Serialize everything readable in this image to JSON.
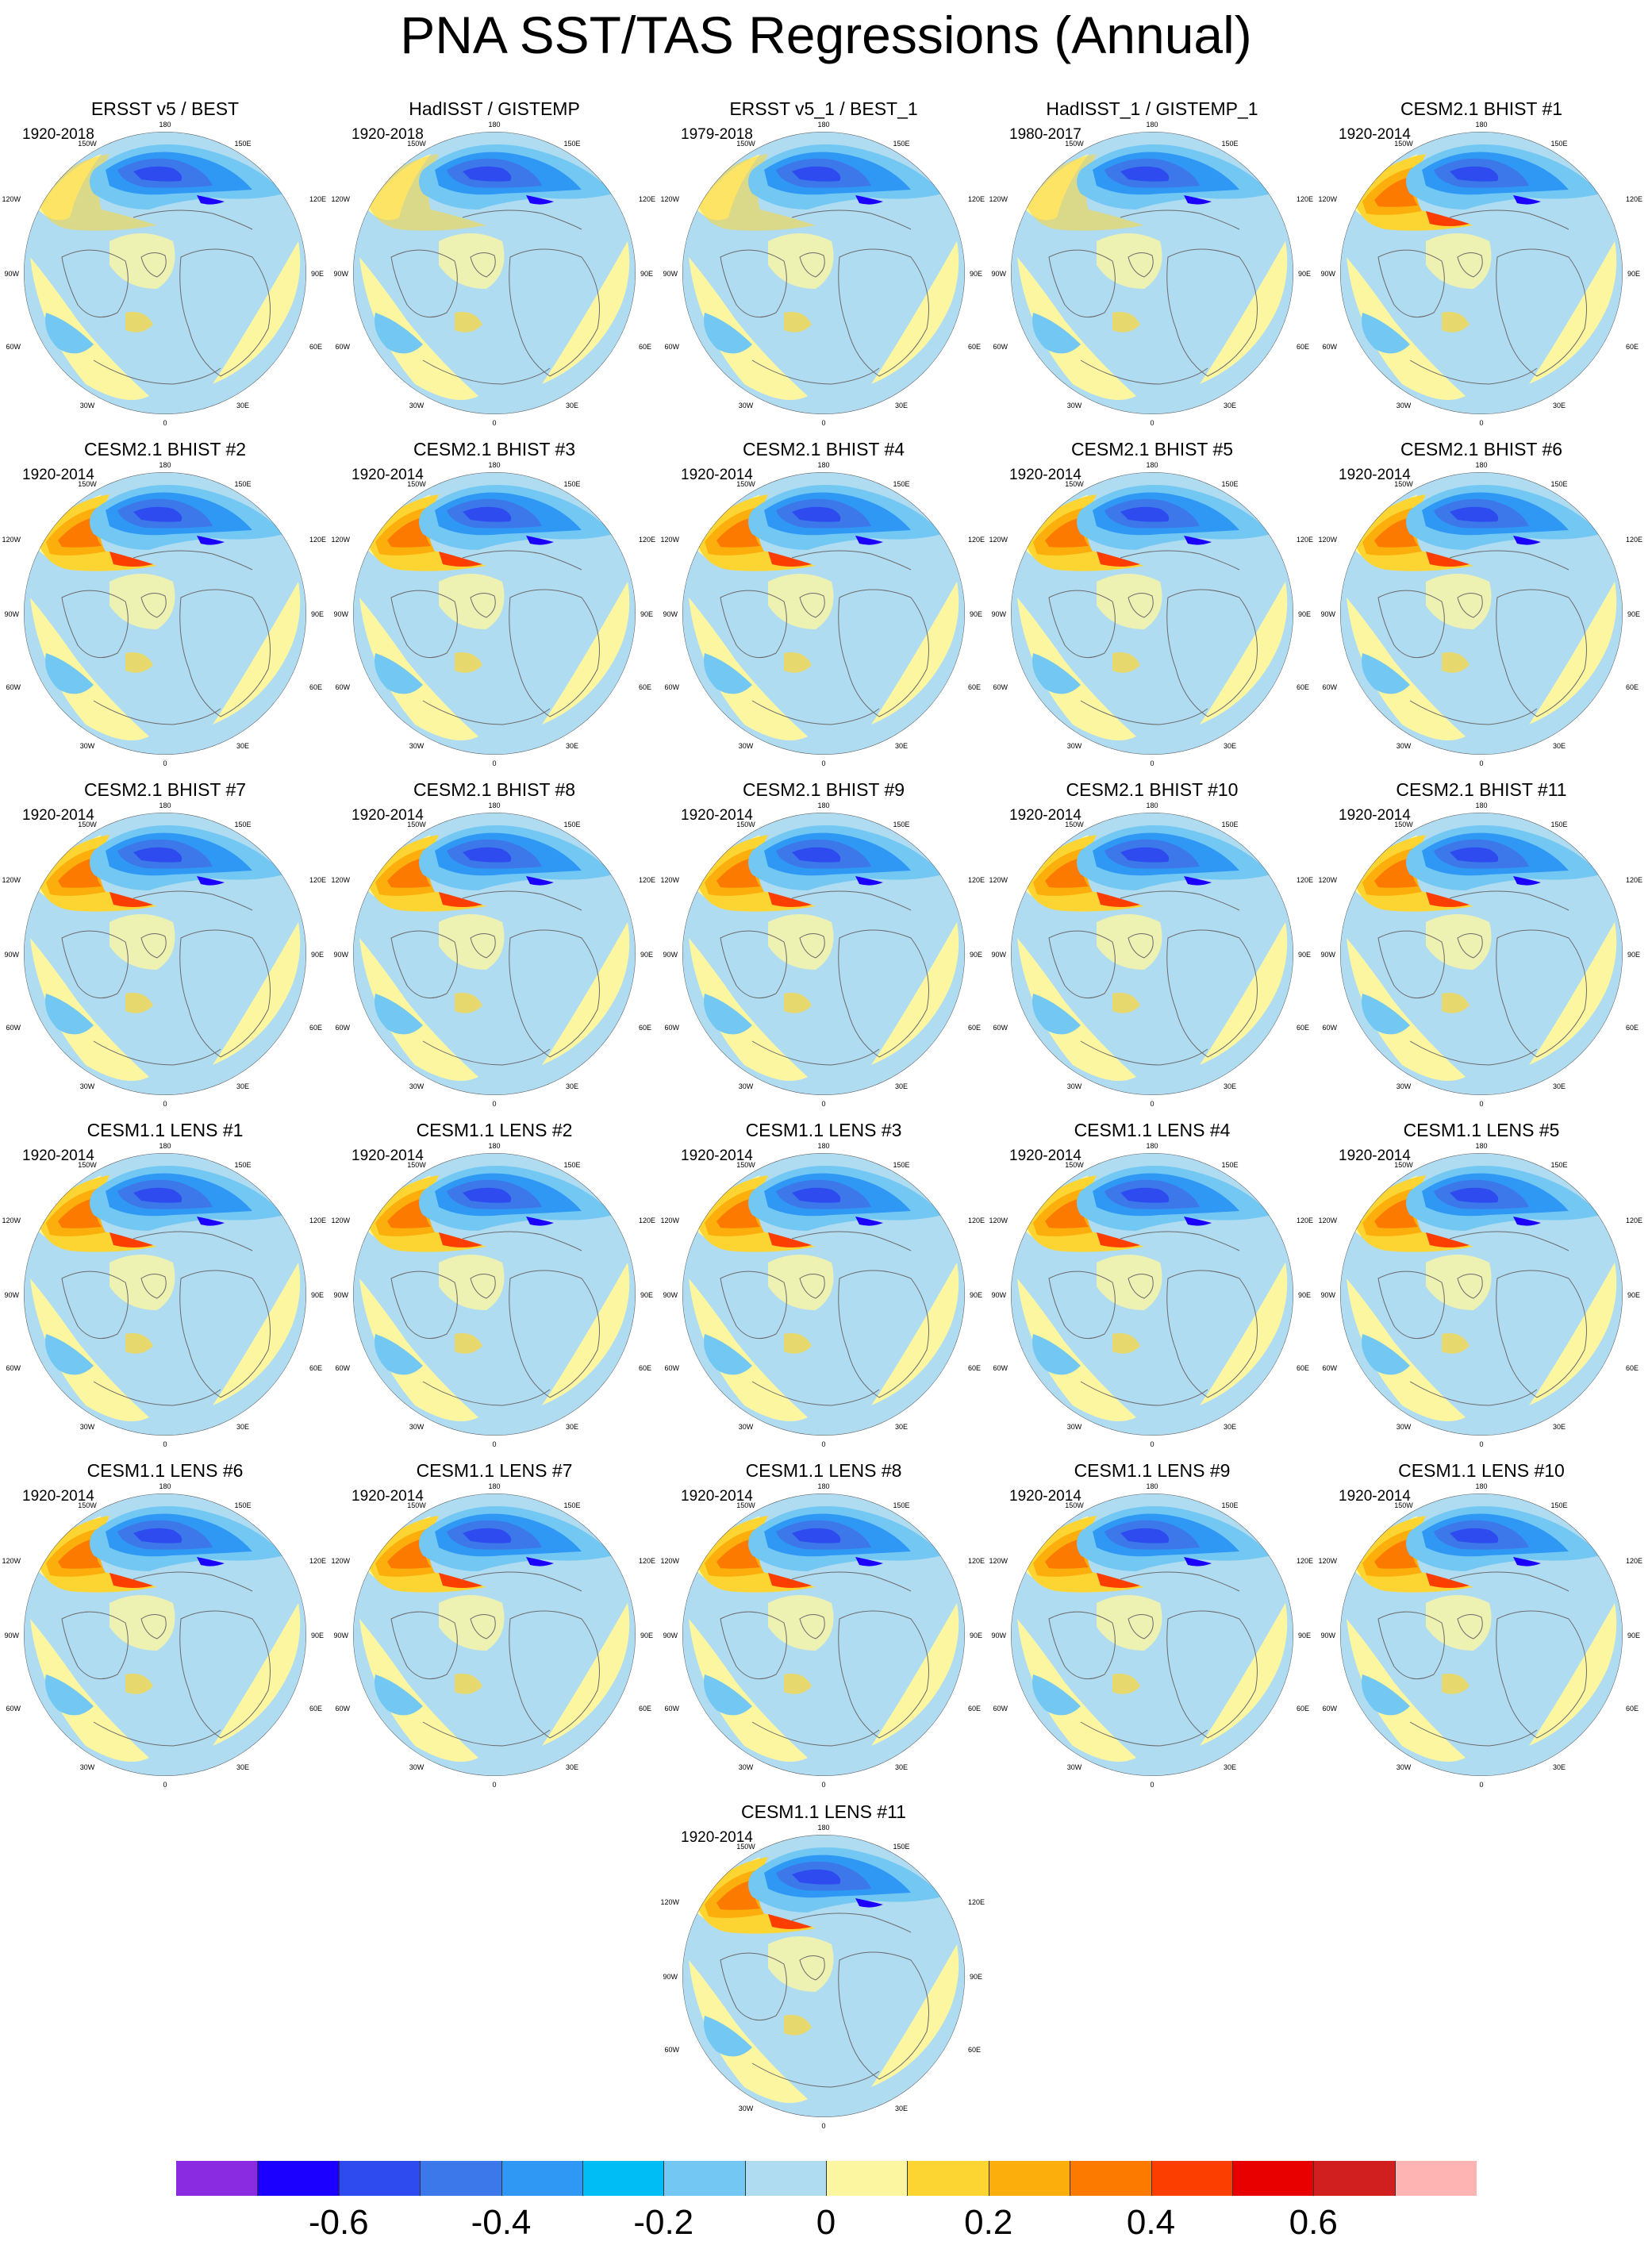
{
  "title": "PNA SST/TAS Regressions (Annual)",
  "map_labels": {
    "lon_180": "180",
    "lon_150w": "150W",
    "lon_150e": "150E",
    "lon_120w": "120W",
    "lon_120e": "120E",
    "lon_90w": "90W",
    "lon_90e": "90E",
    "lon_60w": "60W",
    "lon_60e": "60E",
    "lon_30w": "30W",
    "lon_30e": "30E",
    "lon_0": "0"
  },
  "panels": [
    {
      "title": "ERSST v5 / BEST",
      "period": "1920-2018"
    },
    {
      "title": "HadISST / GISTEMP",
      "period": "1920-2018"
    },
    {
      "title": "ERSST v5_1 / BEST_1",
      "period": "1979-2018"
    },
    {
      "title": "HadISST_1 / GISTEMP_1",
      "period": "1980-2017"
    },
    {
      "title": "CESM2.1 BHIST #1",
      "period": "1920-2014"
    },
    {
      "title": "CESM2.1 BHIST #2",
      "period": "1920-2014"
    },
    {
      "title": "CESM2.1 BHIST #3",
      "period": "1920-2014"
    },
    {
      "title": "CESM2.1 BHIST #4",
      "period": "1920-2014"
    },
    {
      "title": "CESM2.1 BHIST #5",
      "period": "1920-2014"
    },
    {
      "title": "CESM2.1 BHIST #6",
      "period": "1920-2014"
    },
    {
      "title": "CESM2.1 BHIST #7",
      "period": "1920-2014"
    },
    {
      "title": "CESM2.1 BHIST #8",
      "period": "1920-2014"
    },
    {
      "title": "CESM2.1 BHIST #9",
      "period": "1920-2014"
    },
    {
      "title": "CESM2.1 BHIST #10",
      "period": "1920-2014"
    },
    {
      "title": "CESM2.1 BHIST #11",
      "period": "1920-2014"
    },
    {
      "title": "CESM1.1 LENS #1",
      "period": "1920-2014"
    },
    {
      "title": "CESM1.1 LENS #2",
      "period": "1920-2014"
    },
    {
      "title": "CESM1.1 LENS #3",
      "period": "1920-2014"
    },
    {
      "title": "CESM1.1 LENS #4",
      "period": "1920-2014"
    },
    {
      "title": "CESM1.1 LENS #5",
      "period": "1920-2014"
    },
    {
      "title": "CESM1.1 LENS #6",
      "period": "1920-2014"
    },
    {
      "title": "CESM1.1 LENS #7",
      "period": "1920-2014"
    },
    {
      "title": "CESM1.1 LENS #8",
      "period": "1920-2014"
    },
    {
      "title": "CESM1.1 LENS #9",
      "period": "1920-2014"
    },
    {
      "title": "CESM1.1 LENS #10",
      "period": "1920-2014"
    },
    {
      "title": "CESM1.1 LENS #11",
      "period": "1920-2014"
    }
  ],
  "colorbar": {
    "colors": [
      "#8a2be2",
      "#1c00ff",
      "#2e4bef",
      "#3c78ea",
      "#2f98f4",
      "#00bef5",
      "#72c8f2",
      "#b0dcf2",
      "#fdf6a1",
      "#fdd533",
      "#fcae0c",
      "#fc7a00",
      "#fc3f00",
      "#e80000",
      "#d11f1f",
      "#ffb4b4"
    ],
    "ticks": [
      "-0.6",
      "-0.4",
      "-0.2",
      "0",
      "0.2",
      "0.4",
      "0.6"
    ],
    "tick_values": [
      -0.6,
      -0.4,
      -0.2,
      0,
      0.2,
      0.4,
      0.6
    ],
    "boundaries": [
      -0.7,
      -0.6,
      -0.5,
      -0.4,
      -0.3,
      -0.2,
      -0.1,
      0,
      0.1,
      0.2,
      0.3,
      0.4,
      0.5,
      0.6,
      0.7
    ]
  }
}
